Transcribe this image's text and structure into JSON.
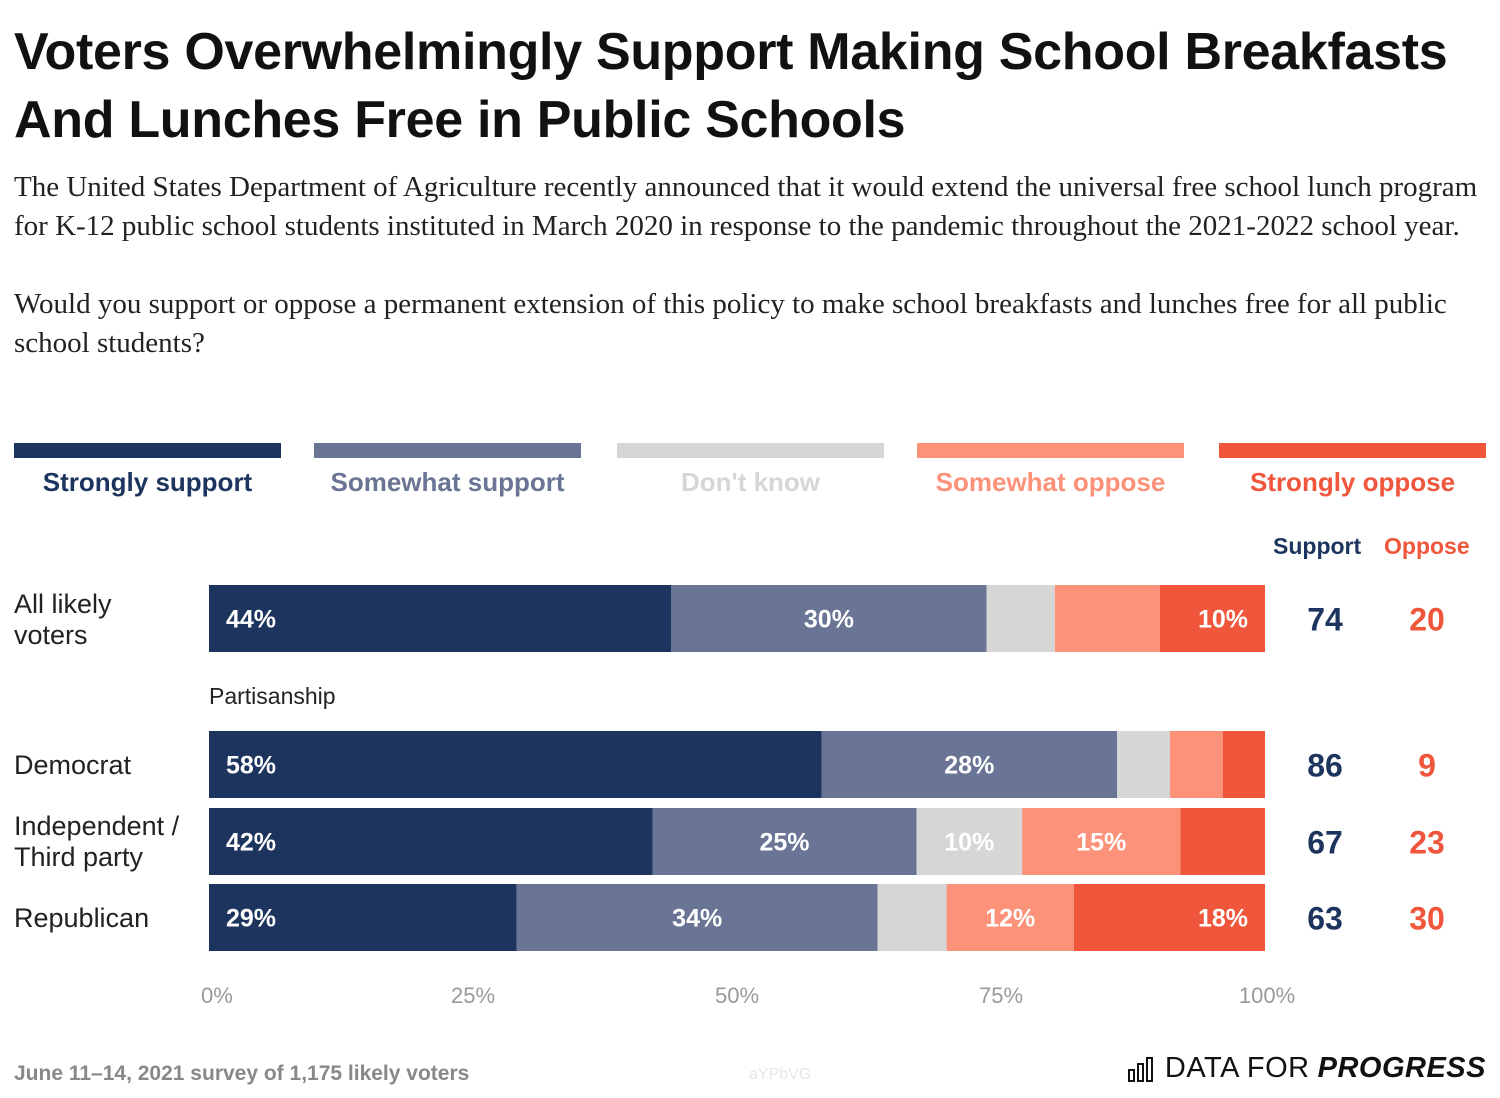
{
  "title": "Voters Overwhelmingly Support Making School Breakfasts And Lunches Free in Public Schools",
  "subtitle_paragraph_1": "The United States Department of Agriculture recently announced that it would extend the universal free school lunch program for K-12 public school students instituted in March 2020 in response to the pandemic throughout the 2021-2022 school year.",
  "subtitle_paragraph_2": "Would you support or oppose a permanent extension of this policy to make school breakfasts and lunches free for all public school students?",
  "legend": [
    {
      "label": "Strongly support",
      "color": "#1d355e"
    },
    {
      "label": "Somewhat support",
      "color": "#6a7494"
    },
    {
      "label": "Don't know",
      "color": "#d6d6d6"
    },
    {
      "label": "Somewhat oppose",
      "color": "#fb9279"
    },
    {
      "label": "Strongly oppose",
      "color": "#ef563b"
    }
  ],
  "columns": {
    "support_header": "Support",
    "oppose_header": "Oppose",
    "support_color": "#1d355e",
    "oppose_color": "#ef563b"
  },
  "section_label": "Partisanship",
  "rows": {
    "all": {
      "label_line1": "All likely",
      "label_line2": "voters"
    },
    "democrat": {
      "label_line1": "Democrat"
    },
    "independent": {
      "label_line1": "Independent /",
      "label_line2": "Third party"
    },
    "republican": {
      "label_line1": "Republican"
    }
  },
  "chart_data": {
    "type": "bar",
    "orientation": "horizontal",
    "stacked": true,
    "categories": [
      "All likely voters",
      "Democrat",
      "Independent / Third party",
      "Republican"
    ],
    "series": [
      {
        "name": "Strongly support",
        "values": [
          44,
          58,
          42,
          29
        ],
        "labels": [
          "44%",
          "58%",
          "42%",
          "29%"
        ]
      },
      {
        "name": "Somewhat support",
        "values": [
          30,
          28,
          25,
          34
        ],
        "labels": [
          "30%",
          "28%",
          "25%",
          "34%"
        ]
      },
      {
        "name": "Don't know",
        "values": [
          6.5,
          5,
          10,
          6.5
        ],
        "labels": [
          "",
          "",
          "10%",
          ""
        ]
      },
      {
        "name": "Somewhat oppose",
        "values": [
          10,
          5,
          15,
          12
        ],
        "labels": [
          "",
          "",
          "15%",
          "12%"
        ]
      },
      {
        "name": "Strongly oppose",
        "values": [
          10,
          4,
          8,
          18
        ],
        "labels": [
          "10%",
          "",
          "",
          "18%"
        ]
      }
    ],
    "totals": {
      "support": [
        "74",
        "86",
        "67",
        "63"
      ],
      "oppose": [
        "20",
        "9",
        "23",
        "30"
      ]
    },
    "xlim": [
      0,
      100
    ],
    "xticks": [
      "0%",
      "25%",
      "50%",
      "75%",
      "100%"
    ],
    "grid": false,
    "legend_position": "top"
  },
  "footer": {
    "note": "June 11–14, 2021 survey of 1,175 likely voters",
    "code": "aYPbVG",
    "brand_regular": "DATA FOR",
    "brand_bold": "PROGRESS"
  }
}
